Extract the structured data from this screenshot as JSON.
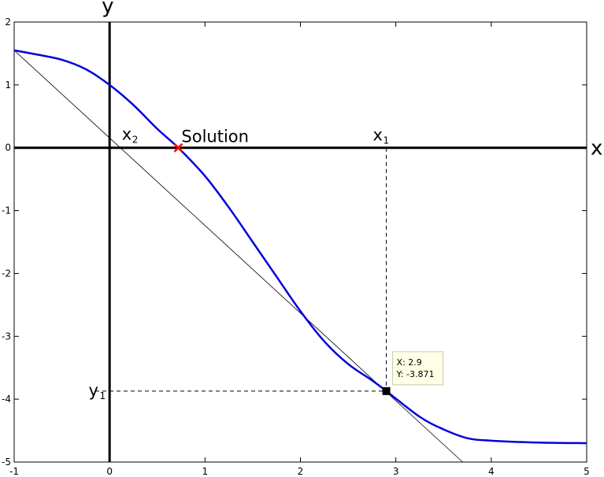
{
  "chart_data": {
    "type": "line",
    "xlim": [
      -1,
      5
    ],
    "ylim": [
      -5,
      2
    ],
    "x_ticks": [
      -1,
      0,
      1,
      2,
      3,
      4,
      5
    ],
    "y_ticks": [
      2,
      1,
      0,
      -1,
      -2,
      -3,
      -4,
      -5
    ],
    "x_tick_labels": [
      "-1",
      "0",
      "1",
      "2",
      "3",
      "4",
      "5"
    ],
    "y_tick_labels": [
      "2",
      "1",
      "0",
      "-1",
      "-2",
      "-3",
      "-4",
      "-5"
    ],
    "xlabel": "x",
    "ylabel": "y",
    "grid": false,
    "curve": {
      "color": "#0000dd",
      "x": [
        -1,
        -0.75,
        -0.5,
        -0.25,
        0,
        0.25,
        0.5,
        0.72,
        1,
        1.25,
        1.5,
        1.75,
        2,
        2.25,
        2.5,
        2.75,
        2.9,
        3.25,
        3.5,
        3.75,
        4,
        4.5,
        5
      ],
      "y": [
        1.55,
        1.48,
        1.4,
        1.25,
        1.0,
        0.68,
        0.3,
        0.0,
        -0.45,
        -0.95,
        -1.5,
        -2.05,
        -2.6,
        -3.08,
        -3.44,
        -3.7,
        -3.871,
        -4.28,
        -4.48,
        -4.62,
        -4.66,
        -4.69,
        -4.7
      ]
    },
    "tangent_line": {
      "color": "#000000",
      "x": [
        -1,
        3.7
      ],
      "y": [
        1.55,
        -5.0
      ]
    },
    "solution": {
      "x": 0.72,
      "y": 0,
      "label": "Solution",
      "color": "#ff0000"
    },
    "x1_label": "x",
    "x1_sub": "1",
    "x2_label": "x",
    "x2_sub": "2",
    "y1_label": "y",
    "y1_sub": "1",
    "point": {
      "x": 2.9,
      "y": -3.871
    },
    "x2_position": 0.12,
    "datatip": {
      "line1": "X: 2.9",
      "line2": "Y: -3.871"
    }
  }
}
